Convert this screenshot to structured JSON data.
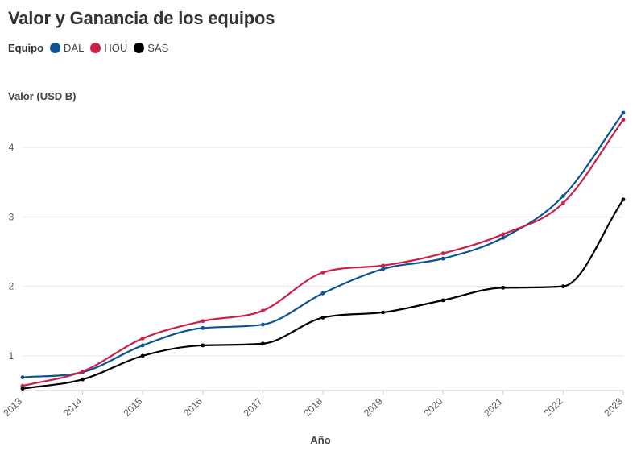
{
  "title": "Valor y Ganancia de los equipos",
  "legend": {
    "title": "Equipo"
  },
  "chart_data": {
    "type": "line",
    "title": "Valor y Ganancia de los equipos",
    "xlabel": "Año",
    "ylabel": "Valor (USD B)",
    "x": [
      2013,
      2014,
      2015,
      2016,
      2017,
      2018,
      2019,
      2020,
      2021,
      2022,
      2023
    ],
    "xlim": [
      2013,
      2023
    ],
    "ylim": [
      0.5,
      4.5
    ],
    "yticks": [
      1,
      2,
      3,
      4
    ],
    "grid": true,
    "legend_position": "top-left",
    "series": [
      {
        "name": "DAL",
        "color": "#0b5394",
        "values": [
          0.69,
          0.765,
          1.15,
          1.4,
          1.45,
          1.9,
          2.25,
          2.4,
          2.7,
          3.3,
          4.5
        ]
      },
      {
        "name": "HOU",
        "color": "#cc1f4a",
        "values": [
          0.568,
          0.775,
          1.25,
          1.5,
          1.65,
          2.2,
          2.3,
          2.475,
          2.75,
          3.2,
          4.4
        ]
      },
      {
        "name": "SAS",
        "color": "#000000",
        "values": [
          0.527,
          0.66,
          1.0,
          1.15,
          1.175,
          1.55,
          1.625,
          1.8,
          1.98,
          2.0,
          3.25
        ]
      }
    ]
  }
}
